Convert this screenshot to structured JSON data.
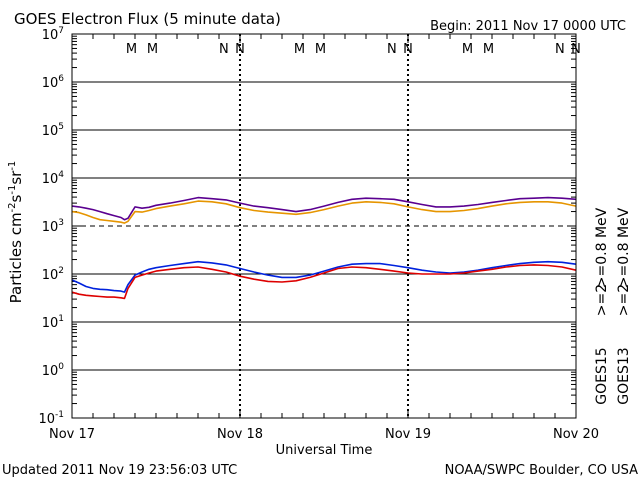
{
  "chart_data": {
    "type": "line",
    "title": "GOES Electron Flux (5 minute data)",
    "begin_label": "Begin: 2011 Nov 17 0000 UTC",
    "xlabel": "Universal Time",
    "ylabel_main": "Particles cm",
    "ylabel_sup1": "-2",
    "ylabel_mid1": "s",
    "ylabel_sup2": "-1",
    "ylabel_mid2": "sr",
    "ylabel_sup3": "-1",
    "y_scale": "log",
    "ylim_exp": [
      -1,
      7
    ],
    "x_range_hours": [
      0,
      72
    ],
    "x_ticks": [
      {
        "hour": 0,
        "label": "Nov 17"
      },
      {
        "hour": 24,
        "label": "Nov 18"
      },
      {
        "hour": 48,
        "label": "Nov 19"
      },
      {
        "hour": 72,
        "label": "Nov 20"
      }
    ],
    "y_ticks": [
      {
        "exp": 7,
        "label": "7"
      },
      {
        "exp": 6,
        "label": "6"
      },
      {
        "exp": 5,
        "label": "5"
      },
      {
        "exp": 4,
        "label": "4"
      },
      {
        "exp": 3,
        "label": "3"
      },
      {
        "exp": 2,
        "label": "2"
      },
      {
        "exp": 1,
        "label": "1"
      },
      {
        "exp": 0,
        "label": "0"
      },
      {
        "exp": -1,
        "label": "-1"
      }
    ],
    "threshold_exp": 3,
    "markers": [
      {
        "hour": 8.5,
        "text": "M",
        "color": "#cc0000"
      },
      {
        "hour": 11.5,
        "text": "M",
        "color": "#0000cc"
      },
      {
        "hour": 21.7,
        "text": "N",
        "color": "#cc0000"
      },
      {
        "hour": 24.0,
        "text": "N",
        "color": "#0000cc"
      },
      {
        "hour": 32.5,
        "text": "M",
        "color": "#cc0000"
      },
      {
        "hour": 35.5,
        "text": "M",
        "color": "#0000cc"
      },
      {
        "hour": 45.7,
        "text": "N",
        "color": "#cc0000"
      },
      {
        "hour": 48.0,
        "text": "N",
        "color": "#0000cc"
      },
      {
        "hour": 56.5,
        "text": "M",
        "color": "#cc0000"
      },
      {
        "hour": 59.5,
        "text": "M",
        "color": "#0000cc"
      },
      {
        "hour": 69.7,
        "text": "N",
        "color": "#cc0000"
      },
      {
        "hour": 72.0,
        "text": "N",
        "color": "#0000cc"
      }
    ],
    "series": [
      {
        "color": "#5a0090",
        "x": [
          0,
          1,
          2,
          3,
          4,
          5,
          6,
          7,
          7.5,
          8,
          9,
          10,
          11,
          12,
          14,
          16,
          18,
          20,
          22,
          24,
          26,
          28,
          30,
          32,
          34,
          36,
          38,
          40,
          42,
          44,
          46,
          48,
          50,
          52,
          54,
          56,
          58,
          60,
          62,
          64,
          66,
          68,
          70,
          72
        ],
        "y": [
          2600,
          2500,
          2350,
          2200,
          2000,
          1800,
          1650,
          1500,
          1350,
          1450,
          2500,
          2350,
          2450,
          2700,
          3000,
          3400,
          3900,
          3700,
          3500,
          3000,
          2600,
          2400,
          2200,
          2000,
          2200,
          2600,
          3100,
          3600,
          3800,
          3700,
          3600,
          3200,
          2800,
          2500,
          2500,
          2600,
          2800,
          3100,
          3400,
          3700,
          3800,
          3900,
          3800,
          3600
        ]
      },
      {
        "color": "#e69500",
        "x": [
          0,
          1,
          2,
          3,
          4,
          5,
          6,
          7,
          7.5,
          8,
          9,
          10,
          11,
          12,
          14,
          16,
          18,
          20,
          22,
          24,
          26,
          28,
          30,
          32,
          34,
          36,
          38,
          40,
          42,
          44,
          46,
          48,
          50,
          52,
          54,
          56,
          58,
          60,
          62,
          64,
          66,
          68,
          70,
          72
        ],
        "y": [
          2000,
          1900,
          1700,
          1500,
          1350,
          1300,
          1250,
          1200,
          1150,
          1250,
          2000,
          1950,
          2100,
          2300,
          2600,
          2900,
          3300,
          3200,
          2900,
          2400,
          2100,
          1950,
          1850,
          1750,
          1900,
          2200,
          2600,
          3000,
          3200,
          3100,
          2900,
          2500,
          2200,
          2000,
          2000,
          2100,
          2300,
          2600,
          2900,
          3100,
          3200,
          3200,
          3000,
          2600
        ]
      },
      {
        "color": "#0022dd",
        "x": [
          0,
          1,
          2,
          3,
          4,
          5,
          6,
          7,
          7.5,
          8,
          9,
          10,
          11,
          12,
          14,
          16,
          18,
          20,
          22,
          24,
          26,
          28,
          30,
          32,
          34,
          36,
          38,
          40,
          42,
          44,
          46,
          48,
          50,
          52,
          54,
          56,
          58,
          60,
          62,
          64,
          66,
          68,
          70,
          72
        ],
        "y": [
          75,
          65,
          55,
          50,
          48,
          47,
          45,
          44,
          42,
          60,
          95,
          110,
          125,
          135,
          150,
          165,
          180,
          170,
          155,
          130,
          110,
          95,
          85,
          85,
          95,
          115,
          140,
          160,
          165,
          165,
          150,
          135,
          120,
          110,
          105,
          110,
          120,
          135,
          150,
          165,
          175,
          180,
          175,
          160
        ]
      },
      {
        "color": "#dd0000",
        "x": [
          0,
          1,
          2,
          3,
          4,
          5,
          6,
          7,
          7.5,
          8,
          9,
          10,
          11,
          12,
          14,
          16,
          18,
          20,
          22,
          24,
          26,
          28,
          30,
          32,
          34,
          36,
          38,
          40,
          42,
          44,
          46,
          48,
          50,
          52,
          54,
          56,
          58,
          60,
          62,
          64,
          66,
          68,
          70,
          72
        ],
        "y": [
          42,
          38,
          36,
          35,
          34,
          33,
          33,
          32,
          31,
          50,
          85,
          95,
          105,
          115,
          125,
          135,
          140,
          125,
          110,
          90,
          78,
          70,
          68,
          72,
          85,
          105,
          130,
          140,
          135,
          125,
          115,
          105,
          100,
          100,
          100,
          105,
          115,
          125,
          140,
          150,
          155,
          150,
          140,
          120
        ]
      }
    ],
    "right_labels": [
      {
        "text": ">=0.8  MeV",
        "color": "#5a0090"
      },
      {
        "text": ">=0.8  MeV",
        "color": "#e69500"
      },
      {
        "text": ">=2",
        "color": "#0022dd"
      },
      {
        "text": ">=2",
        "color": "#dd0000"
      },
      {
        "text": "GOES15",
        "color": "#000000"
      },
      {
        "text": "GOES13",
        "color": "#000000"
      }
    ]
  },
  "footer": {
    "updated": "Updated 2011 Nov 19 23:56:03 UTC",
    "source": "NOAA/SWPC Boulder, CO USA"
  }
}
